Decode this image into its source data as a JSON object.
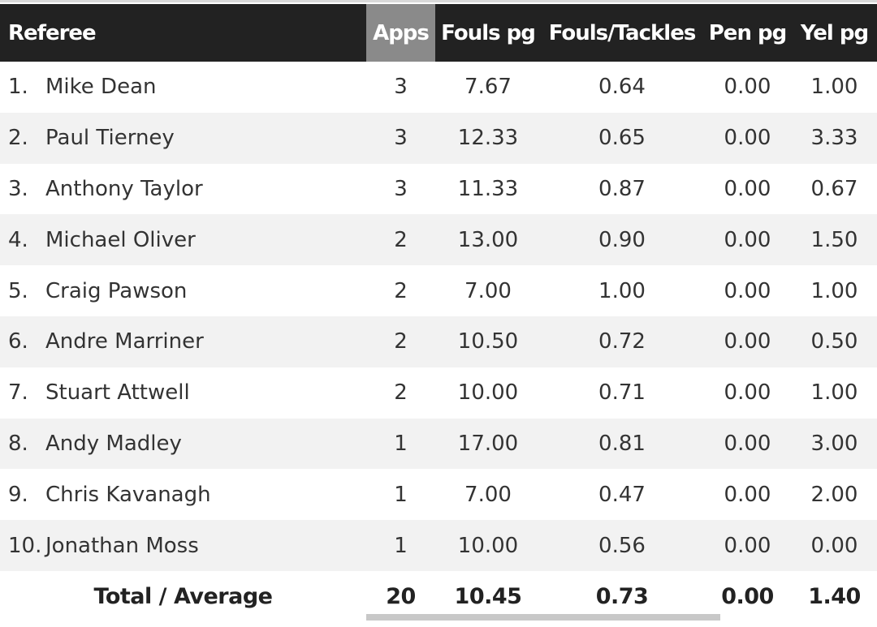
{
  "table": {
    "columns": [
      "Referee",
      "Apps",
      "Fouls pg",
      "Fouls/Tackles",
      "Pen pg",
      "Yel pg"
    ],
    "rows": [
      [
        "1.",
        "Mike Dean",
        "3",
        "7.67",
        "0.64",
        "0.00",
        "1.00"
      ],
      [
        "2.",
        "Paul Tierney",
        "3",
        "12.33",
        "0.65",
        "0.00",
        "3.33"
      ],
      [
        "3.",
        "Anthony Taylor",
        "3",
        "11.33",
        "0.87",
        "0.00",
        "0.67"
      ],
      [
        "4.",
        "Michael Oliver",
        "2",
        "13.00",
        "0.90",
        "0.00",
        "1.50"
      ],
      [
        "5.",
        "Craig Pawson",
        "2",
        "7.00",
        "1.00",
        "0.00",
        "1.00"
      ],
      [
        "6.",
        "Andre Marriner",
        "2",
        "10.50",
        "0.72",
        "0.00",
        "0.50"
      ],
      [
        "7.",
        "Stuart Attwell",
        "2",
        "10.00",
        "0.71",
        "0.00",
        "1.00"
      ],
      [
        "8.",
        "Andy Madley",
        "1",
        "17.00",
        "0.81",
        "0.00",
        "3.00"
      ],
      [
        "9.",
        "Chris Kavanagh",
        "1",
        "7.00",
        "0.47",
        "0.00",
        "2.00"
      ],
      [
        "10.",
        "Jonathan Moss",
        "1",
        "10.00",
        "0.56",
        "0.00",
        "0.00"
      ]
    ],
    "total": {
      "label": "Total / Average",
      "values": [
        "20",
        "10.45",
        "0.73",
        "0.00",
        "1.40"
      ]
    }
  }
}
